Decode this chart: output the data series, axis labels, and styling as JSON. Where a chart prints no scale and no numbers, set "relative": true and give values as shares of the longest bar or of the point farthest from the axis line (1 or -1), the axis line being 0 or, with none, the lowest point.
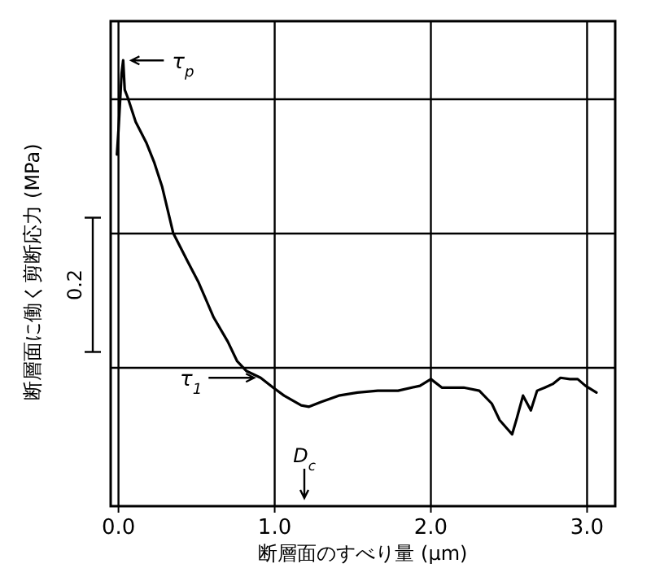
{
  "chart_data": {
    "type": "line",
    "relative": true,
    "xlabel": "断層面のすべり量 (μm)",
    "ylabel": "断層面に働く剪断応力 (MPa)",
    "xlim": [
      -0.05,
      3.18
    ],
    "xticks": [
      {
        "value": 0,
        "label": "0.0"
      },
      {
        "value": 1,
        "label": "1.0"
      },
      {
        "value": 2,
        "label": "2.0"
      },
      {
        "value": 3,
        "label": "3.0"
      }
    ],
    "grid": true,
    "annotations": [
      {
        "text": "τ$_{p}$",
        "x": 0.03,
        "y": 1.0
      },
      {
        "text": "τ$_{1}$",
        "x": 0.91,
        "y": 0.288
      },
      "D$_{c}$",
      "0.2"
    ],
    "x": [
      -0.01,
      0.0,
      0.02,
      0.03,
      0.04,
      0.06,
      0.11,
      0.18,
      0.23,
      0.28,
      0.35,
      0.44,
      0.51,
      0.61,
      0.7,
      0.76,
      0.82,
      0.91,
      0.99,
      1.06,
      1.17,
      1.22,
      1.3,
      1.41,
      1.53,
      1.66,
      1.79,
      1.93,
      2.0,
      2.07,
      2.21,
      2.31,
      2.39,
      2.44,
      2.52,
      2.55,
      2.59,
      2.64,
      2.68,
      2.73,
      2.78,
      2.83,
      2.89,
      2.94,
      2.99,
      3.06
    ],
    "series": [
      {
        "color": "#000000",
        "values": [
          0.789,
          0.843,
          0.971,
          1.0,
          0.934,
          0.916,
          0.862,
          0.814,
          0.77,
          0.716,
          0.613,
          0.551,
          0.504,
          0.423,
          0.369,
          0.325,
          0.303,
          0.288,
          0.266,
          0.248,
          0.226,
          0.223,
          0.234,
          0.248,
          0.255,
          0.259,
          0.259,
          0.27,
          0.285,
          0.266,
          0.266,
          0.259,
          0.23,
          0.193,
          0.161,
          0.197,
          0.248,
          0.215,
          0.259,
          0.266,
          0.274,
          0.288,
          0.285,
          0.285,
          0.27,
          0.255
        ]
      }
    ]
  }
}
